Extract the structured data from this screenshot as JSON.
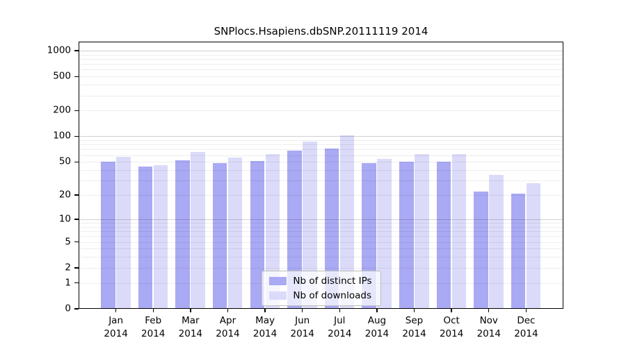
{
  "page": {
    "background": "#ffffff",
    "axis_color": "#000000",
    "text_color": "#000000"
  },
  "chart_data": {
    "type": "bar",
    "title": "SNPlocs.Hsapiens.dbSNP.20111119 2014",
    "categories": [
      "Jan",
      "Feb",
      "Mar",
      "Apr",
      "May",
      "Jun",
      "Jul",
      "Aug",
      "Sep",
      "Oct",
      "Nov",
      "Dec"
    ],
    "year_label": "2014",
    "series": [
      {
        "name": "Nb of distinct IPs",
        "color": "#a9a9f4",
        "values": [
          50,
          44,
          52,
          48,
          51,
          68,
          72,
          48,
          50,
          50,
          22,
          21
        ]
      },
      {
        "name": "Nb of downloads",
        "color": "#dbdbf9",
        "values": [
          57,
          46,
          65,
          56,
          62,
          87,
          103,
          54,
          62,
          62,
          35,
          28
        ]
      }
    ],
    "yticks": [
      0,
      1,
      2,
      5,
      10,
      20,
      50,
      100,
      200,
      500,
      1000
    ],
    "yscale": "log10(value+1)",
    "ylim_top_value": 1270,
    "xlabel": "",
    "ylabel": "",
    "grid": {
      "orientation": "horizontal",
      "minor_values": [
        1,
        2,
        3,
        4,
        5,
        6,
        7,
        8,
        9,
        20,
        30,
        40,
        50,
        60,
        70,
        80,
        90,
        200,
        300,
        400,
        500,
        600,
        700,
        800,
        900
      ],
      "major_values": [
        10,
        100,
        1000
      ],
      "minor_color": "rgba(0,0,0,0.07)",
      "major_color": "rgba(0,0,0,0.18)",
      "drawn_over_bars": true
    },
    "legend": {
      "position": "bottom-center-inside",
      "entries": [
        "Nb of distinct IPs",
        "Nb of downloads"
      ],
      "background": "rgba(255,255,255,0.72)",
      "border_color": "#bcbcbc"
    }
  }
}
